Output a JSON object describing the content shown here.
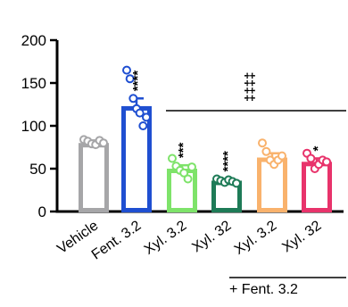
{
  "chart_data": {
    "type": "bar",
    "categories": [
      "Vehicle",
      "Fent. 3.2",
      "Xyl. 3.2",
      "Xyl. 32",
      "Xyl. 3.2",
      "Xyl. 32"
    ],
    "values": [
      80,
      123,
      50,
      36,
      63,
      58
    ],
    "sem": [
      3,
      9,
      4,
      2,
      5,
      4
    ],
    "points": [
      [
        84,
        82,
        79,
        78,
        83,
        80
      ],
      [
        165,
        155,
        132,
        120,
        115,
        100,
        110
      ],
      [
        62,
        53,
        48,
        45,
        38,
        52
      ],
      [
        38,
        36,
        34,
        37,
        35,
        33
      ],
      [
        80,
        70,
        60,
        55,
        60,
        65
      ],
      [
        68,
        62,
        50,
        55,
        60,
        58
      ]
    ],
    "colors": [
      "#a6a6a8",
      "#1f4fd1",
      "#7ee36a",
      "#1e7b57",
      "#f9b26c",
      "#e8336b"
    ],
    "significance": [
      "",
      "****",
      "***",
      "****",
      "",
      "*"
    ],
    "comparison_marker": "‡‡‡‡",
    "group_label": "+ Fent. 3.2",
    "y_ticks": [
      "0",
      "50",
      "100",
      "150",
      "200"
    ],
    "ylim": [
      0,
      200
    ],
    "xlabel": "",
    "ylabel": "",
    "title": ""
  }
}
